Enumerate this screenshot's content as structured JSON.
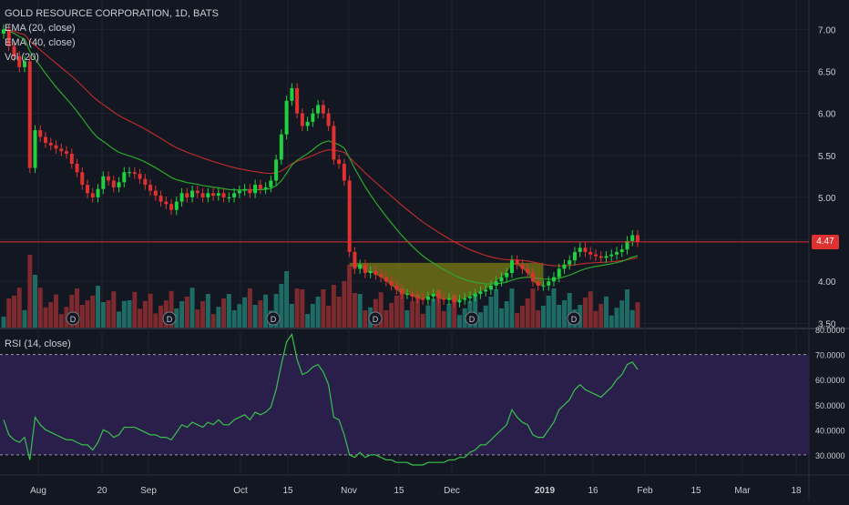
{
  "header": {
    "symbol_line": "GOLD RESOURCE CORPORATION, 1D, BATS",
    "indicators": [
      "EMA (20, close)",
      "EMA (40, close)",
      "Vol (20)"
    ]
  },
  "rsi_panel": {
    "label": "RSI (14, close)"
  },
  "last_price_label": "4.47",
  "colors": {
    "background": "#131722",
    "up": "#26a69a",
    "up_candle": "#1fd13f",
    "down": "#e03131",
    "ema20": "#2ca82c",
    "ema40": "#b72b2b",
    "rsi_line": "#36c24a",
    "rsi_band": "#2a1f4a",
    "cup_fill": "#8a8a14",
    "grid": "#1f2330"
  },
  "chart_data": [
    {
      "type": "candlestick",
      "title": "GOLD RESOURCE CORPORATION, 1D, BATS",
      "x_ticks": [
        "Aug",
        "20",
        "Sep",
        "Oct",
        "15",
        "Nov",
        "15",
        "Dec",
        "2019",
        "16",
        "Feb",
        "15",
        "Mar",
        "18"
      ],
      "y_ticks": [
        "7.00",
        "6.50",
        "6.00",
        "5.50",
        "5.00",
        "4.50",
        "4.00",
        "3.50"
      ],
      "ylim": [
        3.45,
        7.35
      ],
      "closes": [
        7.0,
        6.8,
        6.68,
        6.55,
        6.62,
        5.35,
        5.8,
        5.72,
        5.65,
        5.62,
        5.58,
        5.55,
        5.52,
        5.4,
        5.3,
        5.15,
        5.05,
        5.0,
        5.1,
        5.25,
        5.2,
        5.12,
        5.18,
        5.3,
        5.3,
        5.28,
        5.22,
        5.15,
        5.08,
        5.02,
        4.95,
        4.92,
        4.85,
        4.95,
        5.05,
        5.0,
        5.08,
        5.05,
        5.0,
        5.05,
        5.02,
        5.05,
        5.0,
        5.0,
        5.05,
        5.08,
        5.1,
        5.05,
        5.15,
        5.1,
        5.12,
        5.2,
        5.45,
        5.75,
        6.15,
        6.3,
        6.0,
        5.85,
        5.9,
        6.0,
        6.1,
        6.0,
        5.85,
        5.45,
        5.4,
        5.2,
        4.35,
        4.15,
        4.2,
        4.1,
        4.12,
        4.08,
        4.05,
        4.0,
        3.95,
        3.9,
        3.85,
        3.85,
        3.82,
        3.8,
        3.78,
        3.82,
        3.85,
        3.8,
        3.78,
        3.8,
        3.75,
        3.78,
        3.8,
        3.82,
        3.85,
        3.88,
        3.9,
        3.95,
        4.0,
        4.05,
        4.1,
        4.25,
        4.2,
        4.15,
        4.1,
        4.0,
        3.95,
        3.95,
        4.0,
        4.05,
        4.15,
        4.2,
        4.25,
        4.35,
        4.4,
        4.35,
        4.32,
        4.3,
        4.28,
        4.3,
        4.32,
        4.35,
        4.38,
        4.48,
        4.55,
        4.47
      ],
      "volume_ticks_marked": [
        "D",
        "D",
        "D",
        "D",
        "D",
        "D"
      ],
      "series": [
        {
          "name": "EMA (20, close)",
          "color": "#2ca82c"
        },
        {
          "name": "EMA (40, close)",
          "color": "#b72b2b"
        }
      ],
      "last_price": 4.47
    },
    {
      "type": "line",
      "title": "RSI (14, close)",
      "y_ticks": [
        "80.0000",
        "70.0000",
        "60.0000",
        "50.0000",
        "40.0000",
        "30.0000"
      ],
      "ylim": [
        22,
        80
      ],
      "band": [
        30,
        70
      ],
      "values": [
        44,
        38,
        36,
        35,
        37,
        28,
        45,
        42,
        40,
        39,
        38,
        37,
        36,
        36,
        35,
        34,
        34,
        32,
        35,
        40,
        39,
        37,
        38,
        41,
        41,
        41,
        40,
        39,
        38,
        38,
        37,
        37,
        36,
        39,
        42,
        41,
        43,
        42,
        41,
        43,
        42,
        44,
        42,
        42,
        44,
        45,
        46,
        44,
        47,
        46,
        47,
        49,
        56,
        66,
        75,
        78,
        68,
        62,
        63,
        65,
        66,
        63,
        58,
        45,
        44,
        38,
        30,
        29,
        31,
        29,
        30,
        30,
        29,
        28,
        28,
        27,
        27,
        27,
        26,
        26,
        26,
        27,
        27,
        27,
        27,
        28,
        28,
        29,
        29,
        31,
        32,
        34,
        34,
        36,
        38,
        40,
        42,
        48,
        45,
        43,
        42,
        38,
        37,
        37,
        40,
        43,
        48,
        50,
        52,
        56,
        58,
        56,
        55,
        54,
        53,
        55,
        57,
        60,
        62,
        66,
        67,
        64
      ]
    }
  ]
}
